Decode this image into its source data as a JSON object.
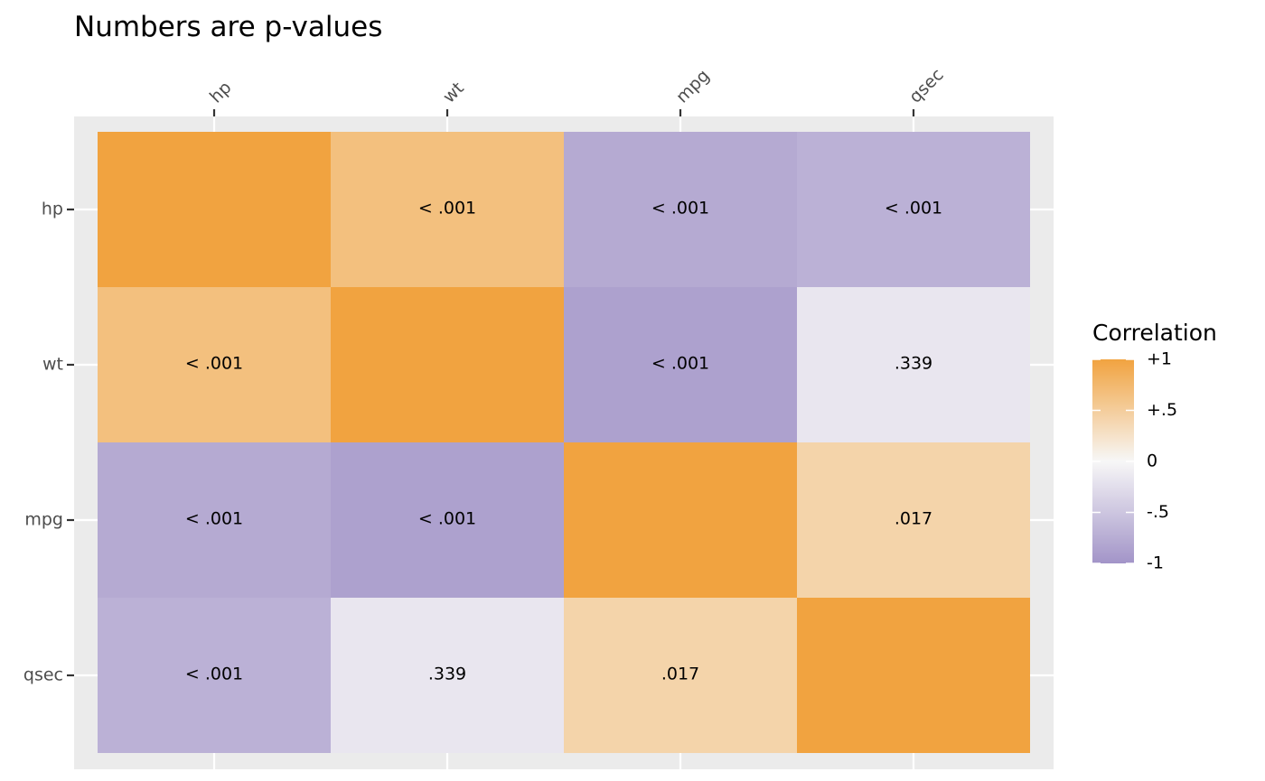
{
  "chart_data": {
    "type": "heatmap",
    "title": "Numbers are p-values",
    "x_categories": [
      "hp",
      "wt",
      "mpg",
      "qsec"
    ],
    "y_categories": [
      "hp",
      "wt",
      "mpg",
      "qsec"
    ],
    "x_axis_position": "top",
    "x_tick_rotation_deg": 45,
    "correlations": [
      [
        1.0,
        0.66,
        -0.78,
        -0.71
      ],
      [
        0.66,
        1.0,
        -0.87,
        -0.17
      ],
      [
        -0.78,
        -0.87,
        1.0,
        0.42
      ],
      [
        -0.71,
        -0.17,
        0.42,
        1.0
      ]
    ],
    "cell_labels": [
      [
        "",
        "< .001",
        "< .001",
        "< .001"
      ],
      [
        "< .001",
        "",
        "< .001",
        ".339"
      ],
      [
        "< .001",
        "< .001",
        "",
        ".017"
      ],
      [
        "< .001",
        ".339",
        ".017",
        ""
      ]
    ],
    "legend": {
      "title": "Correlation",
      "position": "right",
      "range": [
        -1,
        1
      ],
      "breaks": [
        1,
        0.5,
        0,
        -0.5,
        -1
      ],
      "break_labels": [
        "+1",
        "+.5",
        "0",
        "-.5",
        "-1"
      ]
    },
    "color_scale": {
      "low": "#a294c8",
      "mid": "#f7f7f7",
      "high": "#f1a340"
    },
    "panel_background": "#ebebeb",
    "grid": true
  }
}
